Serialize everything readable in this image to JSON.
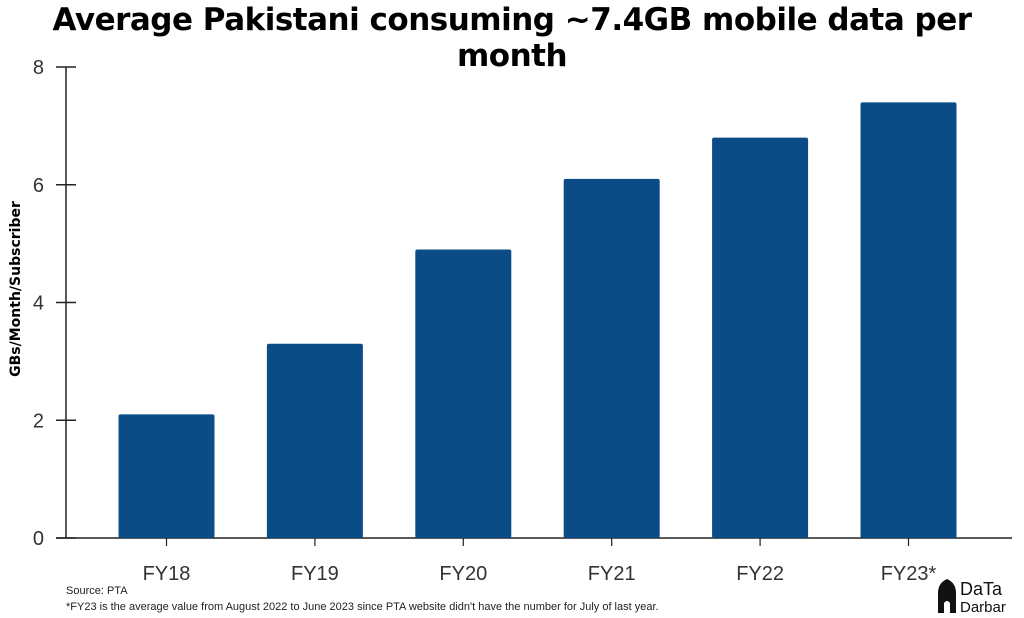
{
  "chart_data": {
    "type": "bar",
    "title": "Average Pakistani consuming ~7.4GB mobile data per month",
    "xlabel": "",
    "ylabel": "GBs/Month/Subscriber",
    "categories": [
      "FY18",
      "FY19",
      "FY20",
      "FY21",
      "FY22",
      "FY23*"
    ],
    "values": [
      2.1,
      3.3,
      4.9,
      6.1,
      6.8,
      7.4
    ],
    "ylim": [
      0,
      8
    ],
    "yticks": [
      0,
      2,
      4,
      6,
      8
    ],
    "grid": false,
    "bar_color": "#0b4c86"
  },
  "footer": {
    "source": "Source: PTA",
    "footnote": "*FY23 is the average value from August 2022 to June 2023 since PTA website didn't have the number for July of last year."
  },
  "logo": {
    "line1": "DaTa",
    "line2": "Darbar"
  }
}
